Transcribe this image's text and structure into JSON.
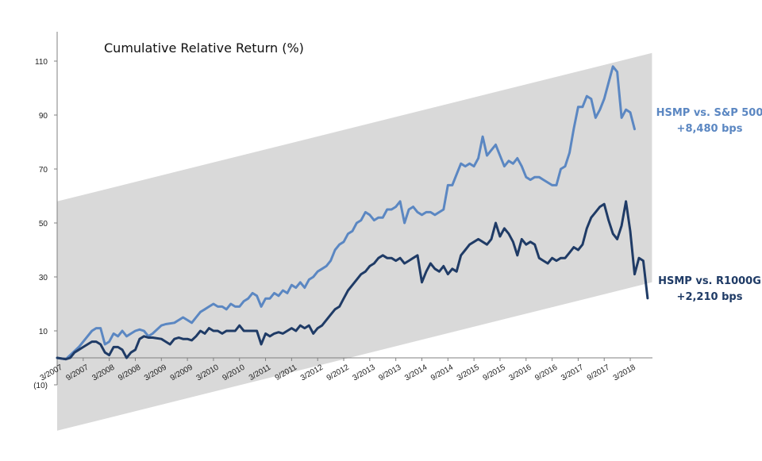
{
  "chart_data": {
    "type": "line",
    "title": "Cumulative Relative Return (%)",
    "ylim": [
      -10,
      120
    ],
    "y_ticks": [
      110,
      90,
      70,
      50,
      30,
      10,
      "(10)"
    ],
    "y_tick_values": [
      110,
      90,
      70,
      50,
      30,
      10,
      -10
    ],
    "x_tick_labels": [
      "3/2007",
      "9/2007",
      "3/2008",
      "9/2008",
      "3/2009",
      "9/2009",
      "3/2010",
      "9/2010",
      "3/2011",
      "9/2011",
      "3/2012",
      "9/2012",
      "3/2013",
      "9/2013",
      "3/2014",
      "9/2014",
      "3/2015",
      "9/2015",
      "3/2016",
      "9/2016",
      "3/2017",
      "9/2017",
      "3/2018"
    ],
    "channel": {
      "color": "#d9d9d9",
      "upper": [
        [
          0,
          58
        ],
        [
          137,
          113
        ]
      ],
      "lower": [
        [
          0,
          -27
        ],
        [
          137,
          28
        ]
      ]
    },
    "series": [
      {
        "name": "HSMP vs. S&P 500",
        "color": "#5b87c2",
        "values": [
          [
            0,
            0
          ],
          [
            2,
            -0.5
          ],
          [
            3,
            1
          ],
          [
            5,
            4
          ],
          [
            7,
            8
          ],
          [
            8,
            10
          ],
          [
            9,
            11
          ],
          [
            10,
            11
          ],
          [
            11,
            5
          ],
          [
            12,
            6
          ],
          [
            13,
            9
          ],
          [
            14,
            8
          ],
          [
            15,
            10
          ],
          [
            16,
            8
          ],
          [
            17,
            9
          ],
          [
            18,
            10
          ],
          [
            19,
            10.5
          ],
          [
            20,
            10
          ],
          [
            21,
            8
          ],
          [
            22,
            9
          ],
          [
            24,
            12
          ],
          [
            25,
            12.5
          ],
          [
            27,
            13
          ],
          [
            28,
            14
          ],
          [
            29,
            15
          ],
          [
            30,
            14
          ],
          [
            31,
            13
          ],
          [
            32,
            15
          ],
          [
            33,
            17
          ],
          [
            34,
            18
          ],
          [
            35,
            19
          ],
          [
            36,
            20
          ],
          [
            37,
            19
          ],
          [
            38,
            19
          ],
          [
            39,
            18
          ],
          [
            40,
            20
          ],
          [
            41,
            19
          ],
          [
            42,
            19
          ],
          [
            43,
            21
          ],
          [
            44,
            22
          ],
          [
            45,
            24
          ],
          [
            46,
            23
          ],
          [
            47,
            19
          ],
          [
            48,
            22
          ],
          [
            49,
            22
          ],
          [
            50,
            24
          ],
          [
            51,
            23
          ],
          [
            52,
            25
          ],
          [
            53,
            24
          ],
          [
            54,
            27
          ],
          [
            55,
            26
          ],
          [
            56,
            28
          ],
          [
            57,
            26
          ],
          [
            58,
            29
          ],
          [
            59,
            30
          ],
          [
            60,
            32
          ],
          [
            61,
            33
          ],
          [
            62,
            34
          ],
          [
            63,
            36
          ],
          [
            64,
            40
          ],
          [
            65,
            42
          ],
          [
            66,
            43
          ],
          [
            67,
            46
          ],
          [
            68,
            47
          ],
          [
            69,
            50
          ],
          [
            70,
            51
          ],
          [
            71,
            54
          ],
          [
            72,
            53
          ],
          [
            73,
            51
          ],
          [
            74,
            52
          ],
          [
            75,
            52
          ],
          [
            76,
            55
          ],
          [
            77,
            55
          ],
          [
            78,
            56
          ],
          [
            79,
            58
          ],
          [
            80,
            50
          ],
          [
            81,
            55
          ],
          [
            82,
            56
          ],
          [
            83,
            54
          ],
          [
            84,
            53
          ],
          [
            85,
            54
          ],
          [
            86,
            54
          ],
          [
            87,
            53
          ],
          [
            88,
            54
          ],
          [
            89,
            55
          ],
          [
            90,
            64
          ],
          [
            91,
            64
          ],
          [
            92,
            68
          ],
          [
            93,
            72
          ],
          [
            94,
            71
          ],
          [
            95,
            72
          ],
          [
            96,
            71
          ],
          [
            97,
            74
          ],
          [
            98,
            82
          ],
          [
            99,
            75
          ],
          [
            100,
            77
          ],
          [
            101,
            79
          ],
          [
            102,
            75
          ],
          [
            103,
            71
          ],
          [
            104,
            73
          ],
          [
            105,
            72
          ],
          [
            106,
            74
          ],
          [
            107,
            71
          ],
          [
            108,
            67
          ],
          [
            109,
            66
          ],
          [
            110,
            67
          ],
          [
            111,
            67
          ],
          [
            112,
            66
          ],
          [
            113,
            65
          ],
          [
            114,
            64
          ],
          [
            115,
            64
          ],
          [
            116,
            70
          ],
          [
            117,
            71
          ],
          [
            118,
            76
          ],
          [
            119,
            85
          ],
          [
            120,
            93
          ],
          [
            121,
            93
          ],
          [
            122,
            97
          ],
          [
            123,
            96
          ],
          [
            124,
            89
          ],
          [
            125,
            92
          ],
          [
            126,
            96
          ],
          [
            127,
            102
          ],
          [
            128,
            108
          ],
          [
            129,
            106
          ],
          [
            130,
            89
          ],
          [
            131,
            92
          ],
          [
            132,
            91
          ],
          [
            133,
            84.8
          ]
        ]
      },
      {
        "name": "HSMP vs. R1000G",
        "color": "#1f3b66",
        "values": [
          [
            0,
            0
          ],
          [
            2,
            -0.5
          ],
          [
            3,
            0
          ],
          [
            4,
            2
          ],
          [
            5,
            3
          ],
          [
            6,
            4
          ],
          [
            7,
            5
          ],
          [
            8,
            6
          ],
          [
            9,
            6
          ],
          [
            10,
            5
          ],
          [
            11,
            2
          ],
          [
            12,
            1
          ],
          [
            13,
            4
          ],
          [
            14,
            4
          ],
          [
            15,
            3
          ],
          [
            16,
            0
          ],
          [
            17,
            2
          ],
          [
            18,
            3
          ],
          [
            19,
            7
          ],
          [
            20,
            8
          ],
          [
            21,
            7.5
          ],
          [
            22,
            7.5
          ],
          [
            24,
            7
          ],
          [
            25,
            6
          ],
          [
            26,
            5
          ],
          [
            27,
            7
          ],
          [
            28,
            7.5
          ],
          [
            29,
            7
          ],
          [
            30,
            7
          ],
          [
            31,
            6.5
          ],
          [
            32,
            8
          ],
          [
            33,
            10
          ],
          [
            34,
            9
          ],
          [
            35,
            11
          ],
          [
            36,
            10
          ],
          [
            37,
            10
          ],
          [
            38,
            9
          ],
          [
            39,
            10
          ],
          [
            40,
            10
          ],
          [
            41,
            10
          ],
          [
            42,
            12
          ],
          [
            43,
            10
          ],
          [
            44,
            10
          ],
          [
            45,
            10
          ],
          [
            46,
            10
          ],
          [
            47,
            5
          ],
          [
            48,
            9
          ],
          [
            49,
            8
          ],
          [
            50,
            9
          ],
          [
            51,
            9.5
          ],
          [
            52,
            9
          ],
          [
            53,
            10
          ],
          [
            54,
            11
          ],
          [
            55,
            10
          ],
          [
            56,
            12
          ],
          [
            57,
            11
          ],
          [
            58,
            12
          ],
          [
            59,
            9
          ],
          [
            60,
            11
          ],
          [
            61,
            12
          ],
          [
            62,
            14
          ],
          [
            63,
            16
          ],
          [
            64,
            18
          ],
          [
            65,
            19
          ],
          [
            66,
            22
          ],
          [
            67,
            25
          ],
          [
            68,
            27
          ],
          [
            69,
            29
          ],
          [
            70,
            31
          ],
          [
            71,
            32
          ],
          [
            72,
            34
          ],
          [
            73,
            35
          ],
          [
            74,
            37
          ],
          [
            75,
            38
          ],
          [
            76,
            37
          ],
          [
            77,
            37
          ],
          [
            78,
            36
          ],
          [
            79,
            37
          ],
          [
            80,
            35
          ],
          [
            81,
            36
          ],
          [
            82,
            37
          ],
          [
            83,
            38
          ],
          [
            84,
            28
          ],
          [
            85,
            32
          ],
          [
            86,
            35
          ],
          [
            87,
            33
          ],
          [
            88,
            32
          ],
          [
            89,
            34
          ],
          [
            90,
            31
          ],
          [
            91,
            33
          ],
          [
            92,
            32
          ],
          [
            93,
            38
          ],
          [
            94,
            40
          ],
          [
            95,
            42
          ],
          [
            96,
            43
          ],
          [
            97,
            44
          ],
          [
            98,
            43
          ],
          [
            99,
            42
          ],
          [
            100,
            44
          ],
          [
            101,
            50
          ],
          [
            102,
            45
          ],
          [
            103,
            48
          ],
          [
            104,
            46
          ],
          [
            105,
            43
          ],
          [
            106,
            38
          ],
          [
            107,
            44
          ],
          [
            108,
            42
          ],
          [
            109,
            43
          ],
          [
            110,
            42
          ],
          [
            111,
            37
          ],
          [
            112,
            36
          ],
          [
            113,
            35
          ],
          [
            114,
            37
          ],
          [
            115,
            36
          ],
          [
            116,
            37
          ],
          [
            117,
            37
          ],
          [
            118,
            39
          ],
          [
            119,
            41
          ],
          [
            120,
            40
          ],
          [
            121,
            42
          ],
          [
            122,
            48
          ],
          [
            123,
            52
          ],
          [
            124,
            54
          ],
          [
            125,
            56
          ],
          [
            126,
            57
          ],
          [
            127,
            51
          ],
          [
            128,
            46
          ],
          [
            129,
            44
          ],
          [
            130,
            49
          ],
          [
            131,
            58
          ],
          [
            132,
            47
          ],
          [
            133,
            31
          ],
          [
            134,
            37
          ],
          [
            135,
            36
          ],
          [
            136,
            22.1
          ]
        ]
      }
    ],
    "annotations": [
      {
        "line1": "HSMP vs. S&P 500",
        "line2": "+8,480 bps",
        "color": "#5b87c2"
      },
      {
        "line1": "HSMP vs. R1000G",
        "line2": "+2,210 bps",
        "color": "#1f3b66"
      }
    ]
  }
}
